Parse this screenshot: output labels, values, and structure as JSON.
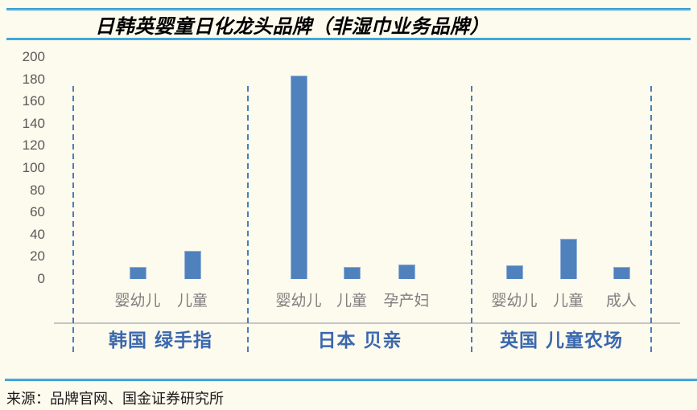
{
  "figure": {
    "title": "日韩英婴童日化龙头品牌（非湿巾业务品牌）",
    "source_note": "来源：品牌官网、国金证券研究所"
  },
  "colors": {
    "background": "#FDFAEE",
    "rule_blue": "#2E9FD9",
    "bar_fill": "#4F81BD",
    "bar_edge": "#95B3D7",
    "axis_line_gray": "#C5C5C5",
    "tick_label_gray": "#595959",
    "category_label_gray": "#7F7F7F",
    "group_label_blue": "#3A67AE",
    "divider_blue": "#4A7EBB",
    "title_black": "#000000"
  },
  "chart_data": {
    "type": "bar",
    "title": "日韩英婴童日化龙头品牌（非湿巾业务品牌）",
    "xlabel": "",
    "ylabel": "",
    "ylim": [
      0,
      200
    ],
    "ytick_step": 20,
    "yticks": [
      0,
      20,
      40,
      60,
      80,
      100,
      120,
      140,
      160,
      180,
      200
    ],
    "grid": false,
    "legend_position": "none",
    "bar_color": "#4F81BD",
    "groups": [
      {
        "brand_label": "韩国 绿手指",
        "categories": [
          "婴幼儿",
          "儿童"
        ],
        "values": [
          11,
          25
        ]
      },
      {
        "brand_label": "日本 贝亲",
        "categories": [
          "婴幼儿",
          "儿童",
          "孕产妇"
        ],
        "values": [
          183,
          11,
          13
        ]
      },
      {
        "brand_label": "英国 儿童农场",
        "categories": [
          "婴幼儿",
          "儿童",
          "成人"
        ],
        "values": [
          12,
          36,
          11
        ]
      }
    ]
  }
}
